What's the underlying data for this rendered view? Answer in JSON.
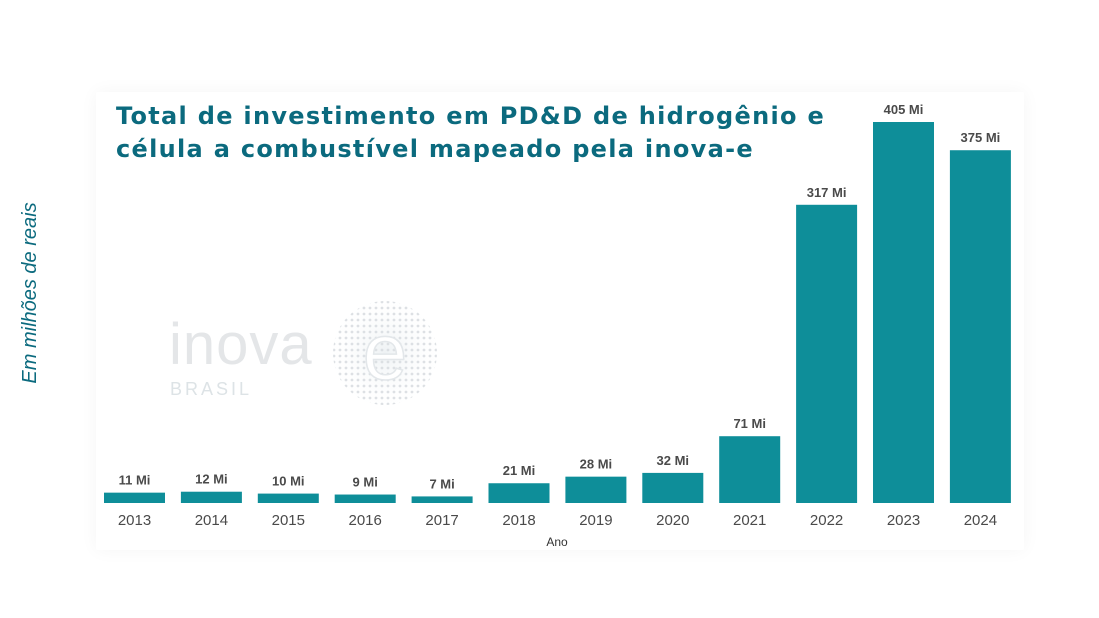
{
  "colors": {
    "bar": "#0e8e99",
    "title": "#0b6a7e",
    "value_label": "#4a4a4a",
    "tick": "#4a4a4a"
  },
  "watermark": {
    "word": "inova",
    "letter": "e",
    "sub": "BRASIL"
  },
  "chart_data": {
    "type": "bar",
    "title": "Total de investimento em PD&D de hidrogênio e célula a combustível mapeado pela inova-e",
    "xlabel": "Ano",
    "ylabel": "Em milhões de reais",
    "categories": [
      "2013",
      "2014",
      "2015",
      "2016",
      "2017",
      "2018",
      "2019",
      "2020",
      "2021",
      "2022",
      "2023",
      "2024"
    ],
    "values": [
      11,
      12,
      10,
      9,
      7,
      21,
      28,
      32,
      71,
      317,
      405,
      375
    ],
    "value_labels": [
      "11 Mi",
      "12 Mi",
      "10 Mi",
      "9 Mi",
      "7 Mi",
      "21 Mi",
      "28 Mi",
      "32 Mi",
      "71 Mi",
      "317 Mi",
      "405 Mi",
      "375 Mi"
    ],
    "ylim": [
      0,
      405
    ],
    "grid": false,
    "legend": "none"
  }
}
